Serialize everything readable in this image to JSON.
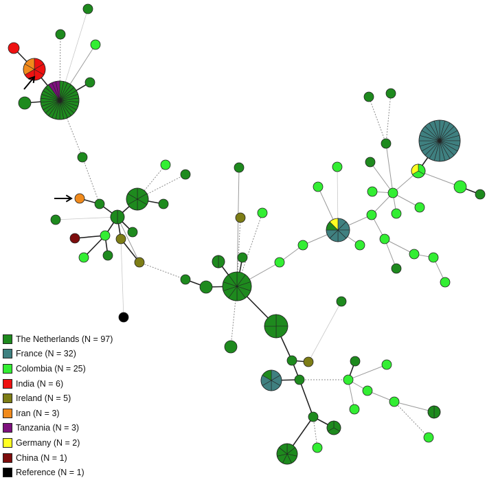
{
  "legend": [
    {
      "label": "The Netherlands (N = 97)",
      "color": "#1e8a1e"
    },
    {
      "label": "France (N = 32)",
      "color": "#3f8080"
    },
    {
      "label": "Colombia (N = 25)",
      "color": "#33ee33"
    },
    {
      "label": "India (N = 6)",
      "color": "#ee1111"
    },
    {
      "label": "Ireland (N = 5)",
      "color": "#7d7d16"
    },
    {
      "label": "Iran (N = 3)",
      "color": "#f08a1c"
    },
    {
      "label": "Tanzania (N = 3)",
      "color": "#7d117d"
    },
    {
      "label": "Germany (N = 2)",
      "color": "#ffff22"
    },
    {
      "label": "China (N = 1)",
      "color": "#7d0d0d"
    },
    {
      "label": "Reference (N = 1)",
      "color": "#000000"
    }
  ]
}
